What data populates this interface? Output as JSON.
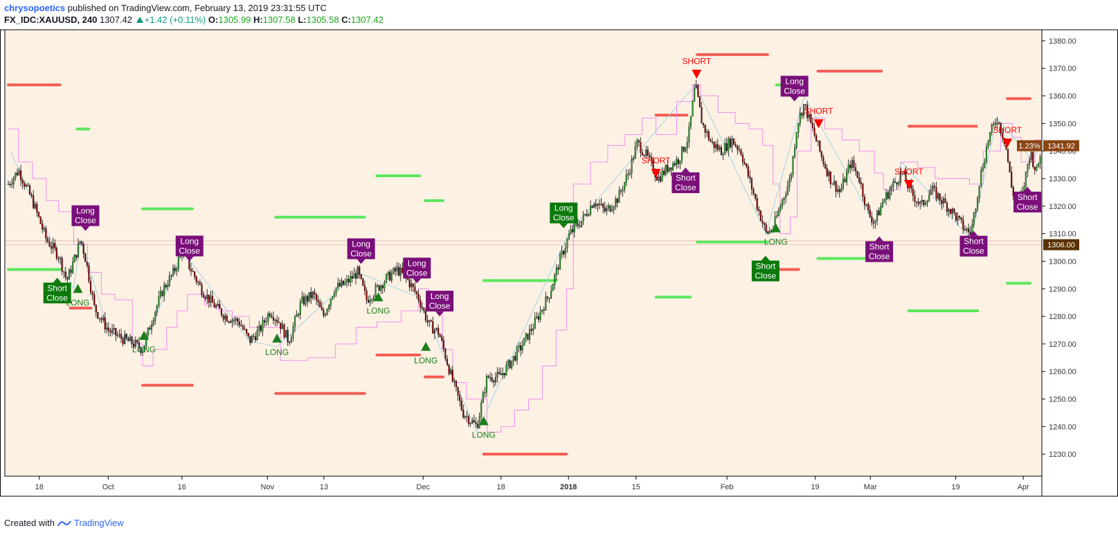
{
  "header": {
    "author": "chrysopoetics",
    "published": "published on TradingView.com, February 13, 2019 23:31:55 UTC",
    "symbol": "FX_IDC:XAUUSD, 240",
    "last": "1307.42",
    "change": "+1.42 (+0.11%)",
    "open_label": "O:",
    "open": "1305.99",
    "high_label": "H:",
    "high": "1307.58",
    "low_label": "L:",
    "low": "1305.58",
    "close_label": "C:",
    "close": "1307.42"
  },
  "footer": {
    "created": "Created with",
    "brand": "TradingView",
    "icon": "tradingview-logo-icon"
  },
  "colors": {
    "background": "#fdf1e4",
    "long_level": "#5ce65c",
    "short_level": "#f25c54",
    "long_marker": "#1a7f1a",
    "short_marker": "#ff0000",
    "close_label": "#7a0f7a",
    "trail": "#ee82ee",
    "zigzag": "#9fd3df",
    "bull_candle": "#2e9a2e",
    "bear_candle": "#8b0000"
  },
  "chart_data": {
    "type": "candlestick",
    "ylim": [
      1222,
      1384
    ],
    "yticks": [
      "1380.00",
      "1370.00",
      "1360.00",
      "1350.00",
      "1340.00",
      "1330.00",
      "1320.00",
      "1310.00",
      "1300.00",
      "1290.00",
      "1280.00",
      "1270.00",
      "1260.00",
      "1250.00",
      "1240.00",
      "1230.00"
    ],
    "ytick_values": [
      1380,
      1370,
      1360,
      1350,
      1340,
      1330,
      1320,
      1310,
      1300,
      1290,
      1280,
      1270,
      1260,
      1250,
      1240,
      1230
    ],
    "xticks": [
      {
        "label": "18",
        "t": 50
      },
      {
        "label": "Oct",
        "t": 150
      },
      {
        "label": "16",
        "t": 257
      },
      {
        "label": "Nov",
        "t": 381
      },
      {
        "label": "13",
        "t": 463
      },
      {
        "label": "Dec",
        "t": 607
      },
      {
        "label": "18",
        "t": 720
      },
      {
        "label": "2018",
        "t": 818,
        "bold": true
      },
      {
        "label": "15",
        "t": 916
      },
      {
        "label": "Feb",
        "t": 1048
      },
      {
        "label": "19",
        "t": 1176
      },
      {
        "label": "Mar",
        "t": 1256
      },
      {
        "label": "19",
        "t": 1380
      },
      {
        "label": "Apr",
        "t": 1478
      }
    ],
    "price_path": [
      [
        5,
        1328
      ],
      [
        20,
        1333
      ],
      [
        40,
        1322
      ],
      [
        60,
        1308
      ],
      [
        78,
        1302
      ],
      [
        90,
        1293
      ],
      [
        100,
        1300
      ],
      [
        110,
        1308
      ],
      [
        118,
        1300
      ],
      [
        130,
        1283
      ],
      [
        150,
        1275
      ],
      [
        170,
        1272
      ],
      [
        188,
        1270
      ],
      [
        200,
        1268
      ],
      [
        215,
        1280
      ],
      [
        230,
        1290
      ],
      [
        245,
        1296
      ],
      [
        258,
        1304
      ],
      [
        268,
        1298
      ],
      [
        285,
        1290
      ],
      [
        300,
        1285
      ],
      [
        320,
        1280
      ],
      [
        340,
        1278
      ],
      [
        355,
        1271
      ],
      [
        370,
        1275
      ],
      [
        385,
        1282
      ],
      [
        398,
        1278
      ],
      [
        412,
        1271
      ],
      [
        430,
        1285
      ],
      [
        448,
        1288
      ],
      [
        462,
        1280
      ],
      [
        478,
        1290
      ],
      [
        495,
        1292
      ],
      [
        512,
        1296
      ],
      [
        525,
        1286
      ],
      [
        540,
        1290
      ],
      [
        555,
        1294
      ],
      [
        570,
        1297
      ],
      [
        585,
        1293
      ],
      [
        600,
        1287
      ],
      [
        615,
        1277
      ],
      [
        630,
        1274
      ],
      [
        648,
        1258
      ],
      [
        665,
        1245
      ],
      [
        685,
        1240
      ],
      [
        700,
        1258
      ],
      [
        718,
        1258
      ],
      [
        736,
        1264
      ],
      [
        752,
        1270
      ],
      [
        770,
        1278
      ],
      [
        790,
        1288
      ],
      [
        805,
        1300
      ],
      [
        820,
        1310
      ],
      [
        838,
        1315
      ],
      [
        855,
        1322
      ],
      [
        872,
        1318
      ],
      [
        890,
        1323
      ],
      [
        905,
        1332
      ],
      [
        918,
        1343
      ],
      [
        932,
        1338
      ],
      [
        948,
        1330
      ],
      [
        962,
        1334
      ],
      [
        978,
        1337
      ],
      [
        992,
        1345
      ],
      [
        1002,
        1364
      ],
      [
        1012,
        1350
      ],
      [
        1025,
        1343
      ],
      [
        1040,
        1340
      ],
      [
        1055,
        1344
      ],
      [
        1068,
        1340
      ],
      [
        1080,
        1330
      ],
      [
        1092,
        1320
      ],
      [
        1105,
        1310
      ],
      [
        1115,
        1312
      ],
      [
        1128,
        1322
      ],
      [
        1140,
        1330
      ],
      [
        1150,
        1350
      ],
      [
        1160,
        1357
      ],
      [
        1172,
        1348
      ],
      [
        1185,
        1338
      ],
      [
        1198,
        1330
      ],
      [
        1212,
        1325
      ],
      [
        1228,
        1336
      ],
      [
        1240,
        1330
      ],
      [
        1252,
        1318
      ],
      [
        1262,
        1314
      ],
      [
        1275,
        1322
      ],
      [
        1290,
        1328
      ],
      [
        1302,
        1332
      ],
      [
        1315,
        1325
      ],
      [
        1330,
        1320
      ],
      [
        1345,
        1326
      ],
      [
        1360,
        1322
      ],
      [
        1375,
        1318
      ],
      [
        1392,
        1312
      ],
      [
        1402,
        1310
      ],
      [
        1415,
        1330
      ],
      [
        1428,
        1345
      ],
      [
        1440,
        1352
      ],
      [
        1452,
        1343
      ],
      [
        1462,
        1325
      ],
      [
        1475,
        1322
      ],
      [
        1488,
        1340
      ],
      [
        1497,
        1332
      ],
      [
        1505,
        1342
      ]
    ],
    "trail_steps": [
      [
        5,
        1348
      ],
      [
        20,
        1336
      ],
      [
        40,
        1330
      ],
      [
        60,
        1322
      ],
      [
        78,
        1318
      ],
      [
        100,
        1306
      ],
      [
        120,
        1296
      ],
      [
        140,
        1288
      ],
      [
        160,
        1286
      ],
      [
        185,
        1270
      ],
      [
        200,
        1262
      ],
      [
        215,
        1268
      ],
      [
        235,
        1276
      ],
      [
        250,
        1282
      ],
      [
        265,
        1288
      ],
      [
        290,
        1284
      ],
      [
        310,
        1282
      ],
      [
        330,
        1280
      ],
      [
        355,
        1276
      ],
      [
        400,
        1264
      ],
      [
        440,
        1265
      ],
      [
        480,
        1270
      ],
      [
        510,
        1276
      ],
      [
        540,
        1278
      ],
      [
        575,
        1282
      ],
      [
        600,
        1290
      ],
      [
        615,
        1284
      ],
      [
        635,
        1268
      ],
      [
        650,
        1256
      ],
      [
        670,
        1250
      ],
      [
        700,
        1238
      ],
      [
        720,
        1240
      ],
      [
        740,
        1246
      ],
      [
        760,
        1250
      ],
      [
        780,
        1262
      ],
      [
        800,
        1275
      ],
      [
        815,
        1290
      ],
      [
        825,
        1328
      ],
      [
        850,
        1336
      ],
      [
        875,
        1342
      ],
      [
        900,
        1346
      ],
      [
        925,
        1352
      ],
      [
        945,
        1346
      ],
      [
        975,
        1358
      ],
      [
        998,
        1364
      ],
      [
        1010,
        1360
      ],
      [
        1035,
        1354
      ],
      [
        1060,
        1350
      ],
      [
        1080,
        1348
      ],
      [
        1100,
        1342
      ],
      [
        1115,
        1328
      ],
      [
        1125,
        1310
      ],
      [
        1140,
        1316
      ],
      [
        1150,
        1340
      ],
      [
        1170,
        1352
      ],
      [
        1190,
        1348
      ],
      [
        1215,
        1344
      ],
      [
        1240,
        1340
      ],
      [
        1262,
        1332
      ],
      [
        1275,
        1326
      ],
      [
        1300,
        1336
      ],
      [
        1325,
        1334
      ],
      [
        1350,
        1330
      ],
      [
        1375,
        1330
      ],
      [
        1400,
        1328
      ],
      [
        1420,
        1340
      ],
      [
        1445,
        1350
      ],
      [
        1462,
        1345
      ],
      [
        1475,
        1336
      ],
      [
        1495,
        1344
      ],
      [
        1505,
        1344
      ]
    ],
    "zigzag": [
      [
        8,
        1340
      ],
      [
        40,
        1322
      ],
      [
        78,
        1302
      ],
      [
        100,
        1290
      ],
      [
        110,
        1308
      ],
      [
        150,
        1275
      ],
      [
        200,
        1268
      ],
      [
        258,
        1304
      ],
      [
        355,
        1271
      ],
      [
        395,
        1269
      ],
      [
        512,
        1296
      ],
      [
        600,
        1287
      ],
      [
        685,
        1238
      ],
      [
        818,
        1310
      ],
      [
        1002,
        1364
      ],
      [
        1105,
        1310
      ],
      [
        1160,
        1360
      ],
      [
        1262,
        1314
      ],
      [
        1302,
        1336
      ],
      [
        1402,
        1308
      ],
      [
        1440,
        1352
      ],
      [
        1490,
        1337
      ],
      [
        1505,
        1342
      ]
    ],
    "long_levels": [
      [
        5,
        80,
        1297
      ],
      [
        105,
        122,
        1348
      ],
      [
        200,
        272,
        1319
      ],
      [
        393,
        522,
        1316
      ],
      [
        540,
        602,
        1331
      ],
      [
        610,
        636,
        1322
      ],
      [
        695,
        800,
        1293
      ],
      [
        945,
        995,
        1287
      ],
      [
        1005,
        1107,
        1307
      ],
      [
        1120,
        1135,
        1364
      ],
      [
        1180,
        1270,
        1301
      ],
      [
        1312,
        1412,
        1282
      ],
      [
        1455,
        1488,
        1292
      ]
    ],
    "short_levels": [
      [
        5,
        80,
        1364
      ],
      [
        95,
        125,
        1283
      ],
      [
        200,
        272,
        1255
      ],
      [
        393,
        522,
        1252
      ],
      [
        540,
        602,
        1266
      ],
      [
        610,
        636,
        1258
      ],
      [
        695,
        815,
        1230
      ],
      [
        945,
        990,
        1353
      ],
      [
        1005,
        1107,
        1375
      ],
      [
        1118,
        1152,
        1297
      ],
      [
        1180,
        1272,
        1369
      ],
      [
        1312,
        1410,
        1349
      ],
      [
        1455,
        1488,
        1359
      ]
    ],
    "signals": [
      {
        "type": "LONG",
        "t": 106,
        "price": 1290,
        "label": "LONG"
      },
      {
        "type": "LONG",
        "t": 202,
        "price": 1273,
        "label": "LONG"
      },
      {
        "type": "LONG",
        "t": 395,
        "price": 1272,
        "label": "LONG"
      },
      {
        "type": "LONG",
        "t": 542,
        "price": 1287,
        "label": "LONG"
      },
      {
        "type": "LONG",
        "t": 611,
        "price": 1269,
        "label": "LONG"
      },
      {
        "type": "LONG",
        "t": 695,
        "price": 1242,
        "label": "LONG"
      },
      {
        "type": "LONG",
        "t": 1119,
        "price": 1312,
        "label": "LONG"
      },
      {
        "type": "SHORT",
        "t": 1004,
        "price": 1368,
        "label": "SHORT"
      },
      {
        "type": "SHORT",
        "t": 945,
        "price": 1332,
        "label": "SHORT"
      },
      {
        "type": "SHORT",
        "t": 1181,
        "price": 1350,
        "label": "SHORT"
      },
      {
        "type": "SHORT",
        "t": 1312,
        "price": 1328,
        "label": "SHORT"
      },
      {
        "type": "SHORT",
        "t": 1455,
        "price": 1343,
        "label": "SHORT"
      }
    ],
    "close_labels": [
      {
        "kind": "Short",
        "color": "green",
        "t": 76,
        "price": 1294,
        "side": "below",
        "line1": "Short",
        "line2": "Close"
      },
      {
        "kind": "Long",
        "color": "purple",
        "t": 117,
        "price": 1311,
        "side": "above",
        "line1": "Long",
        "line2": "Close"
      },
      {
        "kind": "Long",
        "color": "purple",
        "t": 268,
        "price": 1300,
        "side": "above",
        "line1": "Long",
        "line2": "Close"
      },
      {
        "kind": "Long",
        "color": "purple",
        "t": 517,
        "price": 1299,
        "side": "above",
        "line1": "Long",
        "line2": "Close"
      },
      {
        "kind": "Long",
        "color": "purple",
        "t": 598,
        "price": 1292,
        "side": "above",
        "line1": "Long",
        "line2": "Close"
      },
      {
        "kind": "Long",
        "color": "purple",
        "t": 631,
        "price": 1280,
        "side": "above",
        "line1": "Long",
        "line2": "Close"
      },
      {
        "kind": "Long",
        "color": "green",
        "t": 811,
        "price": 1312,
        "side": "above",
        "line1": "Long",
        "line2": "Close"
      },
      {
        "kind": "Short",
        "color": "purple",
        "t": 988,
        "price": 1334,
        "side": "below",
        "line1": "Short",
        "line2": "Close"
      },
      {
        "kind": "Short",
        "color": "green",
        "t": 1104,
        "price": 1302,
        "side": "below",
        "line1": "Short",
        "line2": "Close"
      },
      {
        "kind": "Long",
        "color": "purple",
        "t": 1146,
        "price": 1358,
        "side": "above",
        "line1": "Long",
        "line2": "Close"
      },
      {
        "kind": "Short",
        "color": "purple",
        "t": 1269,
        "price": 1309,
        "side": "below",
        "line1": "Short",
        "line2": "Close"
      },
      {
        "kind": "Short",
        "color": "purple",
        "t": 1406,
        "price": 1311,
        "side": "below",
        "line1": "Short",
        "line2": "Close"
      },
      {
        "kind": "Short",
        "color": "purple",
        "t": 1484,
        "price": 1327,
        "side": "below",
        "line1": "Short",
        "line2": "Close"
      }
    ],
    "price_labels": [
      {
        "text": "1341.92",
        "price": 1341.92,
        "color": "#8b4513"
      },
      {
        "text": "1306.00",
        "price": 1306.0,
        "color": "#5a3200"
      }
    ],
    "pct_label": {
      "text": "1.23%",
      "price": 1341.92
    },
    "hlines": [
      1306.0,
      1307.4
    ]
  }
}
